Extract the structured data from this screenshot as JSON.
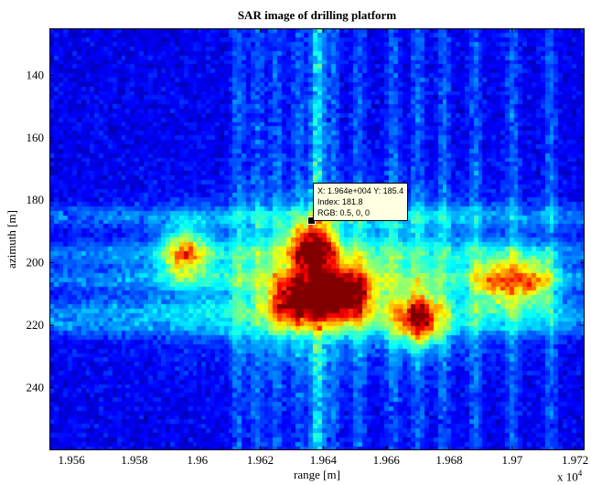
{
  "chart_data": {
    "type": "heatmap",
    "title": "SAR image of drilling platform",
    "xlabel": "range [m]",
    "ylabel": "azimuth [m]",
    "x_exponent_label": "x 10",
    "x_exponent_power": "4",
    "xlim": [
      1.9553,
      1.9723
    ],
    "ylim": [
      125,
      260
    ],
    "xticks": [
      1.956,
      1.958,
      1.96,
      1.962,
      1.964,
      1.966,
      1.968,
      1.97,
      1.972
    ],
    "xtick_labels": [
      "1.956",
      "1.958",
      "1.96",
      "1.962",
      "1.964",
      "1.966",
      "1.968",
      "1.97",
      "1.972"
    ],
    "yticks": [
      140,
      160,
      180,
      200,
      220,
      240
    ],
    "ytick_labels": [
      "140",
      "160",
      "180",
      "200",
      "220",
      "240"
    ],
    "colormap": "jet",
    "clim": [
      0,
      255
    ],
    "datatip": {
      "x_label": "X: 1.964e+004 Y: 185.4",
      "index_label": "Index: 181.8",
      "rgb_label": "RGB: 0.5, 0, 0",
      "x": 19640,
      "y": 185.4
    },
    "features": {
      "vertical_streaks": [
        1.9613,
        1.9619,
        1.9625,
        1.9632,
        1.9638,
        1.9643,
        1.9651,
        1.9662,
        1.967,
        1.9678,
        1.9688,
        1.97,
        1.9712
      ],
      "horizontal_streaks": [
        185,
        197,
        205,
        215,
        220
      ],
      "hot_regions": [
        {
          "x": 1.9636,
          "y": 195,
          "intensity": 0.95
        },
        {
          "x": 1.963,
          "y": 212,
          "intensity": 0.9
        },
        {
          "x": 1.9642,
          "y": 210,
          "intensity": 0.85
        },
        {
          "x": 1.967,
          "y": 218,
          "intensity": 0.85
        },
        {
          "x": 1.965,
          "y": 210,
          "intensity": 0.65
        },
        {
          "x": 1.9596,
          "y": 197,
          "intensity": 0.7
        },
        {
          "x": 1.9695,
          "y": 206,
          "intensity": 0.6
        },
        {
          "x": 1.9706,
          "y": 206,
          "intensity": 0.65
        }
      ]
    }
  }
}
